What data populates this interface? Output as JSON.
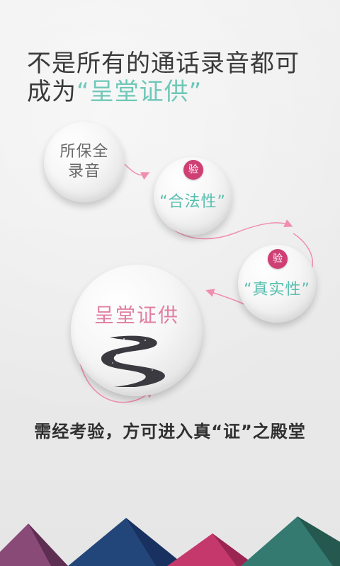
{
  "headline": {
    "line1": "不是所有的通话录音都可",
    "line2_prefix": "成为",
    "line2_highlight": "“呈堂证供”"
  },
  "steps": [
    {
      "label_line1": "所保全",
      "label_line2": "录音"
    },
    {
      "badge": "验",
      "label": "“合法性”"
    },
    {
      "badge": "验",
      "label": "“真实性”"
    }
  ],
  "final": {
    "title": "呈堂证供"
  },
  "caption": "需经考验，方可进入真“证”之殿堂",
  "colors": {
    "accent_teal": "#6fc7b8",
    "accent_pink": "#cf3f74",
    "title_pink": "#e07fa2",
    "mountain_purple": "#7c3f6b",
    "mountain_navy": "#1f3e6d",
    "mountain_magenta": "#c4386b",
    "mountain_teal": "#2e6b63"
  },
  "icons": {
    "road": "winding-road-icon",
    "arrow": "curved-arrow-icon"
  }
}
